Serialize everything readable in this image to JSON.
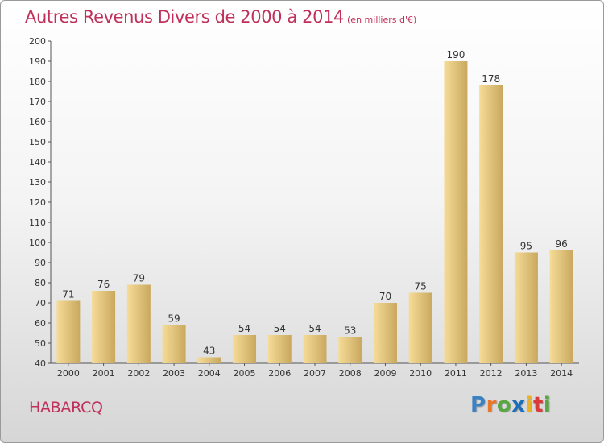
{
  "header": {
    "title": "Autres Revenus Divers de 2000 à 2014",
    "subtitle": "(en milliers d'€)"
  },
  "footer": {
    "city": "HABARCQ",
    "logo": {
      "letters": [
        "P",
        "r",
        "o",
        "x",
        "i",
        "t",
        "i"
      ],
      "colors": [
        "#3b82c4",
        "#e8762b",
        "#57a843",
        "#1a6fb8",
        "#e8b22b",
        "#d93a3a",
        "#57a843"
      ]
    }
  },
  "colors": {
    "bar_light": "#f6dc98",
    "bar_dark": "#c9a85e",
    "accent": "#c0305a"
  },
  "chart_data": {
    "type": "bar",
    "title": "Autres Revenus Divers de 2000 à 2014",
    "subtitle": "(en milliers d'€)",
    "categories": [
      "2000",
      "2001",
      "2002",
      "2003",
      "2004",
      "2005",
      "2006",
      "2007",
      "2008",
      "2009",
      "2010",
      "2011",
      "2012",
      "2013",
      "2014"
    ],
    "values": [
      71,
      76,
      79,
      59,
      43,
      54,
      54,
      54,
      53,
      70,
      75,
      190,
      178,
      95,
      96
    ],
    "ylim": [
      40,
      200
    ],
    "yticks": [
      40,
      50,
      60,
      70,
      80,
      90,
      100,
      110,
      120,
      130,
      140,
      150,
      160,
      170,
      180,
      190,
      200
    ],
    "grid": false,
    "data_labels": true
  }
}
